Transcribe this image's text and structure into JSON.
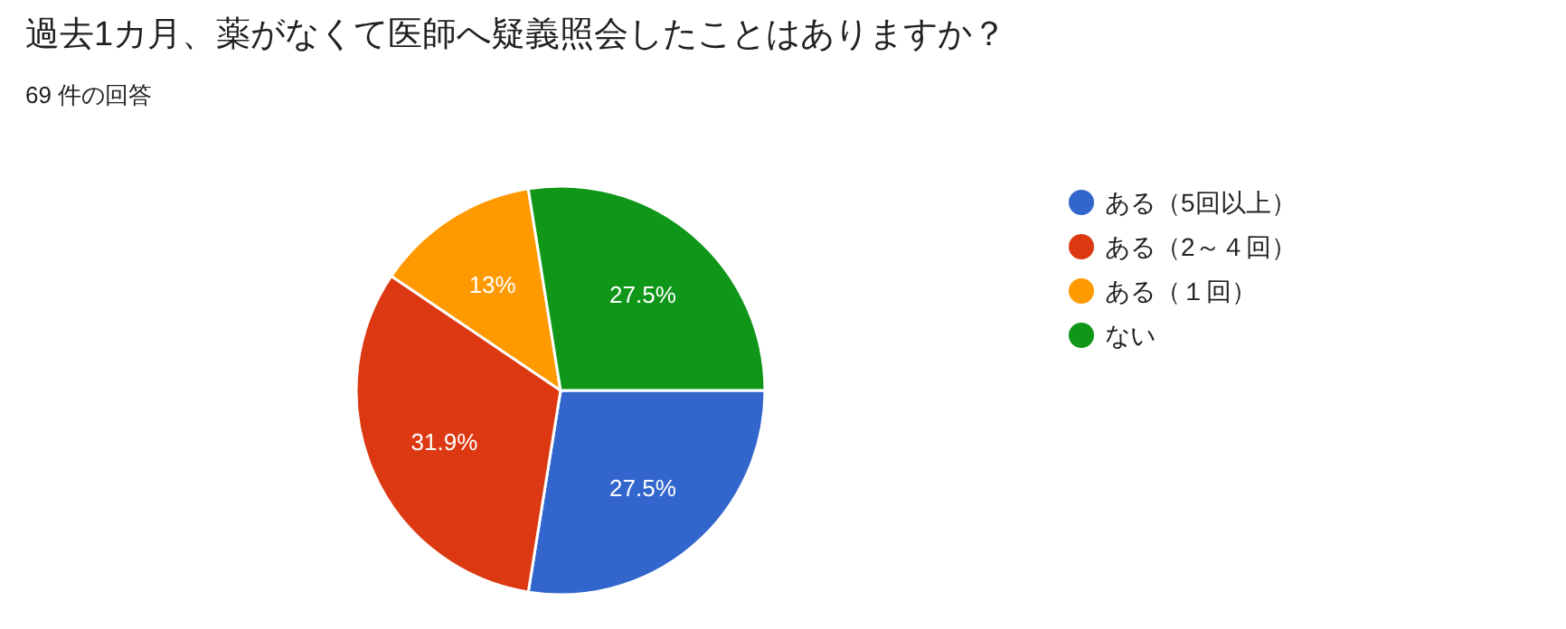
{
  "chart_data": {
    "type": "pie",
    "title": "過去1カ月、薬がなくて医師へ疑義照会したことはありますか？",
    "subtitle": "69 件の回答",
    "categories": [
      "ある（5回以上）",
      "ある（2～４回）",
      "ある（１回）",
      "ない"
    ],
    "values": [
      27.5,
      31.9,
      13,
      27.5
    ],
    "colors": [
      "#3366cc",
      "#dc3912",
      "#ff9900",
      "#109618"
    ],
    "value_labels": [
      "27.5%",
      "31.9%",
      "13%",
      "27.5%"
    ],
    "legend": "right"
  }
}
